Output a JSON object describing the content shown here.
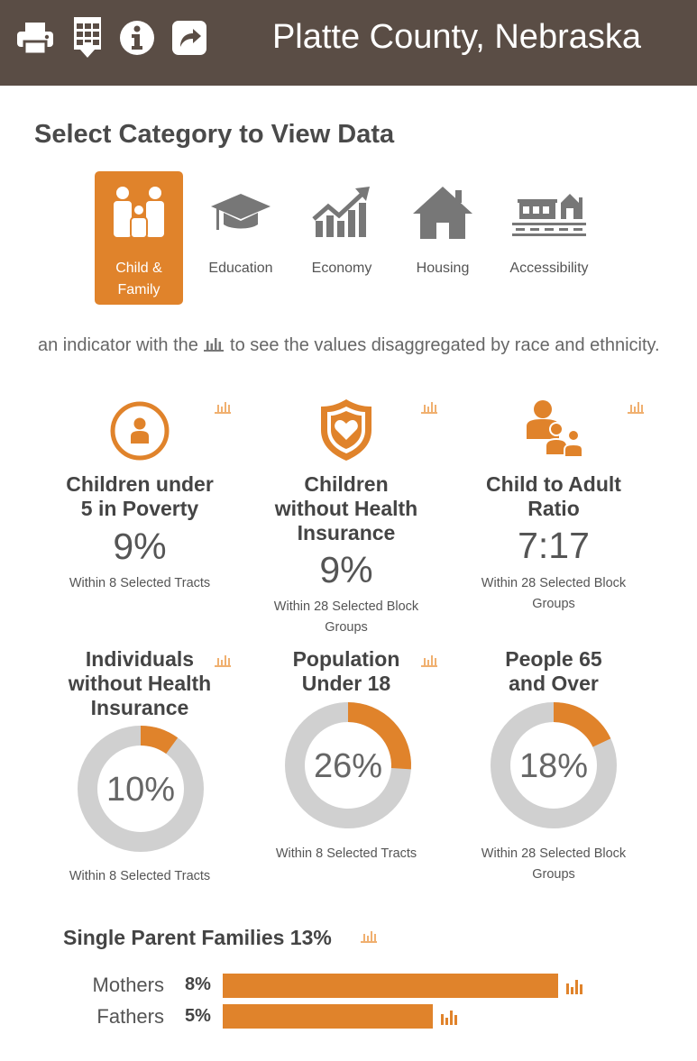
{
  "header": {
    "title": "Platte County, Nebraska",
    "icons": [
      "print-icon",
      "download-table-icon",
      "info-icon",
      "share-icon"
    ]
  },
  "section_title": "Select Category to View Data",
  "categories": [
    {
      "label_line1": "Child &",
      "label_line2": "Family",
      "icon": "family-icon",
      "active": true
    },
    {
      "label_line1": "Education",
      "label_line2": "",
      "icon": "graduation-cap-icon",
      "active": false
    },
    {
      "label_line1": "Economy",
      "label_line2": "",
      "icon": "growth-chart-icon",
      "active": false
    },
    {
      "label_line1": "Housing",
      "label_line2": "",
      "icon": "house-icon",
      "active": false
    },
    {
      "label_line1": "Accessibility",
      "label_line2": "",
      "icon": "transit-icon",
      "active": false
    }
  ],
  "intro": {
    "before": "an indicator with the",
    "after": "to see the values disaggregated by race and ethnicity."
  },
  "metrics": [
    {
      "title_lines": [
        "Children under",
        "5 in Poverty"
      ],
      "value": "9%",
      "sub_lines": [
        "Within 8 Selected Tracts"
      ],
      "icon": "person-circle-icon"
    },
    {
      "title_lines": [
        "Children",
        "without Health",
        "Insurance"
      ],
      "value": "9%",
      "sub_lines": [
        "Within 28 Selected Block",
        "Groups"
      ],
      "icon": "heart-shield-icon"
    },
    {
      "title_lines": [
        "Child to Adult",
        "Ratio"
      ],
      "value": "7:17",
      "sub_lines": [
        "Within 28 Selected Block",
        "Groups"
      ],
      "icon": "adult-children-icon"
    }
  ],
  "donuts": [
    {
      "title_lines": [
        "Individuals",
        "without Health",
        "Insurance"
      ],
      "percent": 10,
      "value_label": "10%",
      "sub_lines": [
        "Within 8 Selected Tracts"
      ]
    },
    {
      "title_lines": [
        "Population",
        "Under 18"
      ],
      "percent": 26,
      "value_label": "26%",
      "sub_lines": [
        "Within 8 Selected Tracts"
      ]
    },
    {
      "title_lines": [
        "People 65",
        "and Over"
      ],
      "percent": 18,
      "value_label": "18%",
      "sub_lines": [
        "Within 28 Selected Block",
        "Groups"
      ]
    }
  ],
  "single_parent": {
    "title": "Single Parent Families 13%",
    "rows": [
      {
        "name": "Mothers",
        "pct_label": "8%",
        "share": 8
      },
      {
        "name": "Fathers",
        "pct_label": "5%",
        "share": 5
      }
    ]
  },
  "colors": {
    "accent": "#e0832b",
    "header_bg": "#5a4d45",
    "donut_track": "#d0d0d0",
    "icon_gray": "#777777"
  }
}
